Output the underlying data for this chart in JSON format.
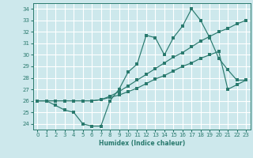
{
  "xlabel": "Humidex (Indice chaleur)",
  "xlim": [
    -0.5,
    23.5
  ],
  "ylim": [
    23.5,
    34.5
  ],
  "yticks": [
    24,
    25,
    26,
    27,
    28,
    29,
    30,
    31,
    32,
    33,
    34
  ],
  "xticks": [
    0,
    1,
    2,
    3,
    4,
    5,
    6,
    7,
    8,
    9,
    10,
    11,
    12,
    13,
    14,
    15,
    16,
    17,
    18,
    19,
    20,
    21,
    22,
    23
  ],
  "line_color": "#2a7a6e",
  "bg_color": "#cde8ec",
  "grid_color": "#ffffff",
  "line1_x": [
    0,
    1,
    2,
    3,
    4,
    5,
    6,
    7,
    8,
    9,
    10,
    11,
    12,
    13,
    14,
    15,
    16,
    17,
    18,
    19,
    20,
    21,
    22,
    23
  ],
  "line1_y": [
    26.0,
    26.0,
    25.6,
    25.2,
    25.0,
    24.0,
    23.8,
    23.8,
    26.0,
    27.0,
    28.5,
    29.2,
    31.7,
    31.5,
    30.0,
    31.5,
    32.5,
    34.0,
    33.0,
    31.5,
    29.7,
    28.7,
    27.8,
    27.8
  ],
  "line2_x": [
    0,
    1,
    2,
    3,
    4,
    5,
    6,
    7,
    8,
    9,
    10,
    11,
    12,
    13,
    14,
    15,
    16,
    17,
    18,
    19,
    20,
    21,
    22,
    23
  ],
  "line2_y": [
    26.0,
    26.0,
    26.0,
    26.0,
    26.0,
    26.0,
    26.0,
    26.1,
    26.4,
    26.8,
    27.3,
    27.8,
    28.3,
    28.8,
    29.3,
    29.8,
    30.2,
    30.7,
    31.2,
    31.6,
    32.0,
    32.3,
    32.7,
    33.0
  ],
  "line3_x": [
    0,
    1,
    2,
    3,
    4,
    5,
    6,
    7,
    8,
    9,
    10,
    11,
    12,
    13,
    14,
    15,
    16,
    17,
    18,
    19,
    20,
    21,
    22,
    23
  ],
  "line3_y": [
    26.0,
    26.0,
    26.0,
    26.0,
    26.0,
    26.0,
    26.0,
    26.1,
    26.3,
    26.5,
    26.8,
    27.1,
    27.5,
    27.9,
    28.2,
    28.6,
    29.0,
    29.3,
    29.7,
    30.0,
    30.3,
    27.0,
    27.4,
    27.8
  ]
}
